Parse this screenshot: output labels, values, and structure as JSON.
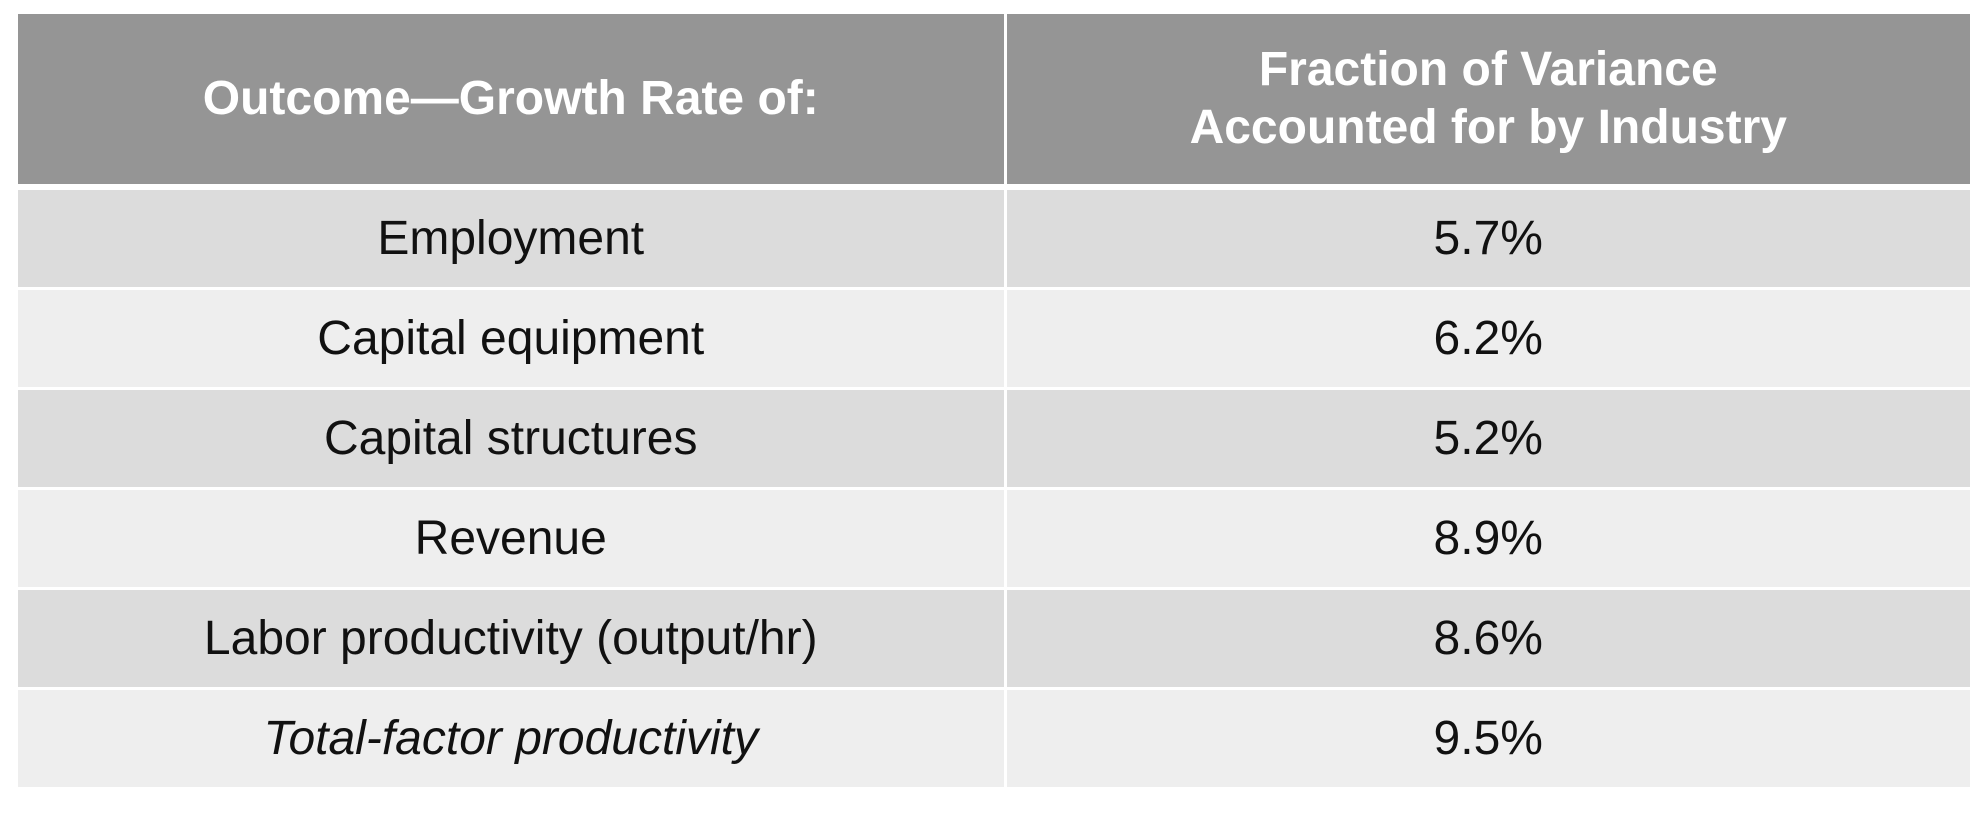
{
  "table": {
    "headers": {
      "outcome": "Outcome—Growth Rate of:",
      "fraction_line1": "Fraction of Variance",
      "fraction_line2": "Accounted for by Industry"
    },
    "rows": [
      {
        "outcome": "Employment",
        "value": "5.7%"
      },
      {
        "outcome": "Capital equipment",
        "value": "6.2%"
      },
      {
        "outcome": "Capital structures",
        "value": "5.2%"
      },
      {
        "outcome": "Revenue",
        "value": "8.9%"
      },
      {
        "outcome": "Labor productivity (output/hr)",
        "value": "8.6%"
      },
      {
        "outcome": "Total-factor productivity",
        "value": "9.5%"
      }
    ],
    "colors": {
      "header_bg": "#959595",
      "row_dark": "#dcdcdc",
      "row_light": "#eeeeee"
    }
  }
}
